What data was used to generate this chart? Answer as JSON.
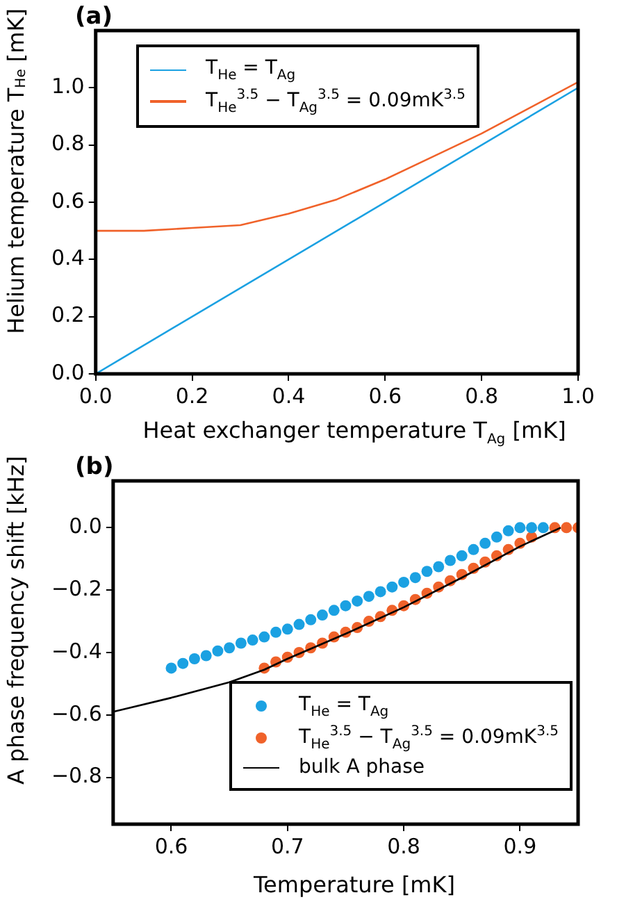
{
  "chart_data": [
    {
      "type": "line",
      "title": "(a)",
      "xlabel": "Heat exchanger temperature T$_{Ag}$ [mK]",
      "ylabel": "Helium temperature T$_{He}$ [mK]",
      "xlim": [
        0,
        1
      ],
      "xticks": [
        {
          "value": 0,
          "label": "0.0"
        },
        0.2,
        0.4,
        0.6,
        0.8,
        {
          "value": 1,
          "label": "1.0"
        }
      ],
      "ylim": [
        0,
        1.2
      ],
      "yticks": [
        {
          "value": 0,
          "label": "0.0"
        },
        0.2,
        0.4,
        0.6,
        0.8,
        {
          "value": 1,
          "label": "1.0"
        }
      ],
      "grid": false,
      "legend": "top left",
      "marker": "none",
      "line_style": "solid",
      "series": [
        {
          "name": "T$_{He}$ = T$_{Ag}$",
          "color": "#1ba1e2",
          "x": [
            0,
            1
          ],
          "values": [
            0,
            1
          ]
        },
        {
          "name": "T$_{He}$$^{3.5}$ − T$_{Ag}$$^{3.5}$ = 0.09mK$^{3.5}$",
          "color": "#f0622a",
          "x": [
            0,
            0.1,
            0.2,
            0.3,
            0.4,
            0.5,
            0.6,
            0.7,
            0.8,
            0.9,
            1
          ],
          "values": [
            0.5,
            0.5,
            0.51,
            0.52,
            0.56,
            0.61,
            0.68,
            0.76,
            0.84,
            0.93,
            1.02
          ]
        }
      ]
    },
    {
      "type": "scatter",
      "title": "(b)",
      "xlabel": "Temperature [mK]",
      "ylabel": "A phase frequency shift [kHz]",
      "xlim": [
        0.55,
        0.95
      ],
      "xticks": [
        0.6,
        0.7,
        0.8,
        0.9
      ],
      "ylim": [
        -0.95,
        0.15
      ],
      "yticks": [
        {
          "value": 0,
          "label": "0.0"
        },
        {
          "value": -0.2,
          "label": "−0.2"
        },
        {
          "value": -0.4,
          "label": "−0.4"
        },
        {
          "value": -0.6,
          "label": "−0.6"
        },
        {
          "value": -0.8,
          "label": "−0.8"
        }
      ],
      "grid": false,
      "legend": "bottom right",
      "marker": "circle",
      "series": [
        {
          "name": "T$_{He}$ = T$_{Ag}$",
          "color": "#1ba1e2",
          "x": [
            0.6,
            0.61,
            0.62,
            0.63,
            0.64,
            0.65,
            0.66,
            0.67,
            0.68,
            0.69,
            0.7,
            0.71,
            0.72,
            0.73,
            0.74,
            0.75,
            0.76,
            0.77,
            0.78,
            0.79,
            0.8,
            0.81,
            0.82,
            0.83,
            0.84,
            0.85,
            0.86,
            0.87,
            0.88,
            0.89,
            0.9,
            0.91,
            0.92
          ],
          "values": [
            -0.45,
            -0.435,
            -0.42,
            -0.41,
            -0.395,
            -0.385,
            -0.37,
            -0.36,
            -0.35,
            -0.335,
            -0.325,
            -0.31,
            -0.295,
            -0.28,
            -0.265,
            -0.25,
            -0.235,
            -0.22,
            -0.205,
            -0.19,
            -0.175,
            -0.16,
            -0.14,
            -0.125,
            -0.105,
            -0.09,
            -0.07,
            -0.05,
            -0.03,
            -0.01,
            0,
            0,
            0
          ]
        },
        {
          "name": "T$_{He}$$^{3.5}$ − T$_{Ag}$$^{3.5}$ = 0.09mK$^{3.5}$",
          "color": "#f0622a",
          "x": [
            0.68,
            0.69,
            0.7,
            0.71,
            0.72,
            0.73,
            0.74,
            0.75,
            0.76,
            0.77,
            0.78,
            0.79,
            0.8,
            0.81,
            0.82,
            0.83,
            0.84,
            0.85,
            0.86,
            0.87,
            0.88,
            0.89,
            0.9,
            0.91,
            0.93,
            0.94,
            0.95
          ],
          "values": [
            -0.45,
            -0.43,
            -0.415,
            -0.4,
            -0.385,
            -0.37,
            -0.35,
            -0.335,
            -0.32,
            -0.3,
            -0.285,
            -0.265,
            -0.25,
            -0.23,
            -0.21,
            -0.19,
            -0.17,
            -0.15,
            -0.13,
            -0.11,
            -0.09,
            -0.07,
            -0.05,
            -0.03,
            0,
            0,
            0
          ]
        },
        {
          "name": "bulk A phase",
          "type": "line",
          "marker": "none",
          "color": "#000000",
          "x": [
            0.55,
            0.6,
            0.65,
            0.68,
            0.7,
            0.75,
            0.8,
            0.85,
            0.9,
            0.935
          ],
          "values": [
            -0.59,
            -0.545,
            -0.495,
            -0.455,
            -0.42,
            -0.34,
            -0.255,
            -0.16,
            -0.06,
            0
          ]
        }
      ]
    }
  ]
}
